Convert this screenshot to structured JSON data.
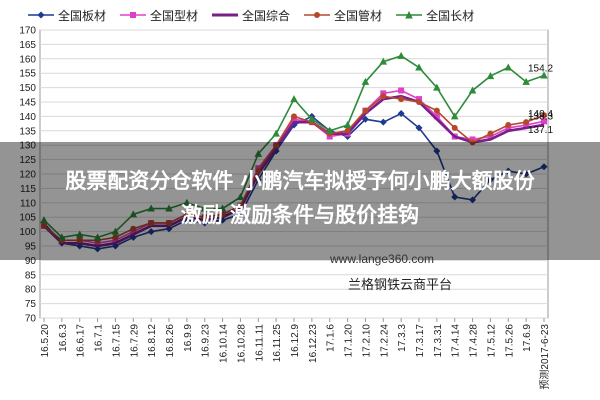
{
  "chart_data": {
    "type": "line",
    "title": "",
    "xlabel": "",
    "ylabel": "",
    "ylim": [
      70,
      170
    ],
    "yticks": [
      70,
      75,
      80,
      85,
      90,
      95,
      100,
      105,
      110,
      115,
      120,
      125,
      130,
      135,
      140,
      145,
      150,
      155,
      160,
      165,
      170
    ],
    "grid": true,
    "legend": "top",
    "categories": [
      "16.5.20",
      "16.6.3",
      "16.6.17",
      "16.7.1",
      "16.7.15",
      "16.7.29",
      "16.8.12",
      "16.8.26",
      "16.9.9",
      "16.9.23",
      "16.10.14",
      "16.10.28",
      "16.11.11",
      "16.11.25",
      "16.12.9",
      "16.12.23",
      "17.1.6",
      "17.1.20",
      "17.2.10",
      "17.2.24",
      "17.3.3",
      "17.3.17",
      "17.3.31",
      "17.4.14",
      "17.4.28",
      "17.5.12",
      "17.5.26",
      "17.6.9",
      "预测2017-6-23"
    ],
    "series": [
      {
        "name": "全国板材",
        "color": "#1f3a93",
        "marker": "diamond",
        "values": [
          103,
          96,
          95,
          94,
          95,
          98,
          100,
          101,
          104,
          103,
          104,
          106,
          118,
          128,
          137,
          140,
          135,
          133,
          139,
          138,
          141,
          136,
          128,
          112,
          111,
          118,
          121,
          120,
          122.5
        ]
      },
      {
        "name": "全国型材",
        "color": "#e040c8",
        "marker": "square",
        "values": [
          102,
          97,
          97,
          96,
          97,
          100,
          103,
          103,
          106,
          105,
          106,
          109,
          122,
          130,
          139,
          138,
          133,
          134,
          142,
          148,
          149,
          146,
          140,
          133,
          132,
          133,
          136,
          137,
          138.3
        ]
      },
      {
        "name": "全国综合",
        "color": "#7a1f8a",
        "marker": "none",
        "values": [
          102,
          96,
          96,
          95,
          96,
          99,
          102,
          102,
          105,
          104,
          105,
          108,
          120,
          129,
          138,
          138,
          134,
          134,
          141,
          146,
          147,
          145,
          139,
          133,
          131,
          132,
          135,
          136,
          137.1
        ]
      },
      {
        "name": "全国管材",
        "color": "#b5482a",
        "marker": "circle",
        "values": [
          102,
          97,
          97,
          97,
          98,
          101,
          103,
          103,
          106,
          105,
          106,
          109,
          121,
          130,
          140,
          138,
          134,
          135,
          142,
          147,
          146,
          145,
          142,
          136,
          131,
          134,
          137,
          138,
          140.4
        ]
      },
      {
        "name": "全国长材",
        "color": "#2e8b3a",
        "marker": "triangle",
        "values": [
          104,
          98,
          99,
          98,
          100,
          106,
          108,
          108,
          110,
          108,
          108,
          112,
          127,
          134,
          146,
          139,
          135,
          137,
          152,
          159,
          161,
          157,
          150,
          140,
          149,
          154,
          157,
          152,
          154.2
        ]
      }
    ],
    "end_labels": [
      "154.2",
      "140.4",
      "138.3",
      "137.1"
    ]
  },
  "overlay": {
    "title_line1": "股票配资分仓软件 小鹏汽车拟授予何小鹏大额股份",
    "title_line2": "激励 激励条件与股价挂钩"
  },
  "watermark": "www.lange360.com",
  "source": "兰格钢铁云商平台"
}
